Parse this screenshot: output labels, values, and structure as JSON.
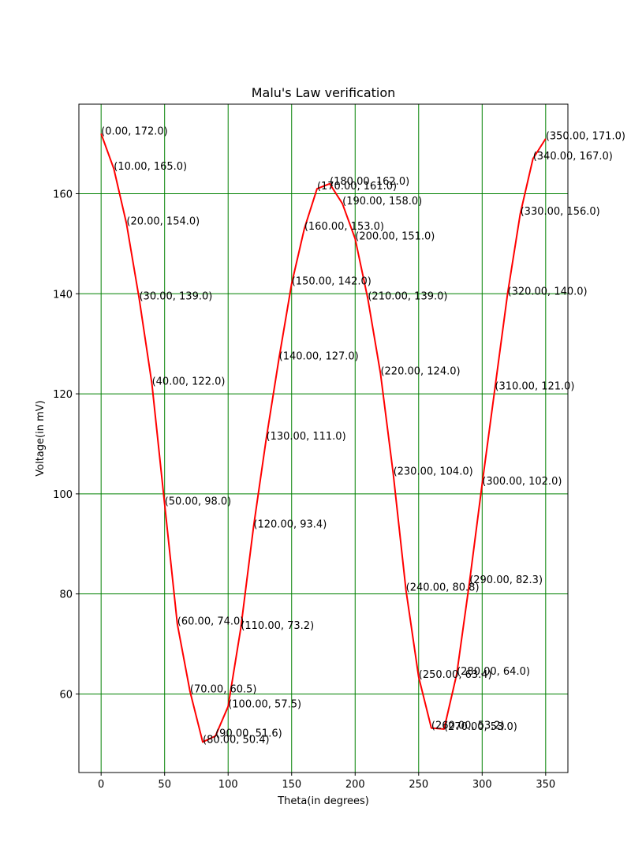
{
  "chart_data": {
    "type": "line",
    "title": "Malu's Law verification",
    "xlabel": "Theta(in degrees)",
    "ylabel": "Voltage(in mV)",
    "xlim": [
      -17.5,
      367.5
    ],
    "ylim": [
      44.3,
      177.9
    ],
    "xticks": [
      0,
      50,
      100,
      150,
      200,
      250,
      300,
      350
    ],
    "yticks": [
      60,
      80,
      100,
      120,
      140,
      160
    ],
    "grid": true,
    "grid_color": "#008000",
    "line_color": "#ff0000",
    "x": [
      0,
      10,
      20,
      30,
      40,
      50,
      60,
      70,
      80,
      90,
      100,
      110,
      120,
      130,
      140,
      150,
      160,
      170,
      180,
      190,
      200,
      210,
      220,
      230,
      240,
      250,
      260,
      270,
      280,
      290,
      300,
      310,
      320,
      330,
      340,
      350
    ],
    "y": [
      172.0,
      165.0,
      154.0,
      139.0,
      122.0,
      98.0,
      74.0,
      60.5,
      50.4,
      51.6,
      57.5,
      73.2,
      93.4,
      111.0,
      127.0,
      142.0,
      153.0,
      161.0,
      162.0,
      158.0,
      151.0,
      139.0,
      124.0,
      104.0,
      80.8,
      63.4,
      53.2,
      53.0,
      64.0,
      82.3,
      102.0,
      121.0,
      140.0,
      156.0,
      167.0,
      171.0
    ],
    "point_labels": [
      "(0.00, 172.0)",
      "(10.00, 165.0)",
      "(20.00, 154.0)",
      "(30.00, 139.0)",
      "(40.00, 122.0)",
      "(50.00, 98.0)",
      "(60.00, 74.0)",
      "(70.00, 60.5)",
      "(80.00, 50.4)",
      "(90.00, 51.6)",
      "(100.00, 57.5)",
      "(110.00, 73.2)",
      "(120.00, 93.4)",
      "(130.00, 111.0)",
      "(140.00, 127.0)",
      "(150.00, 142.0)",
      "(160.00, 153.0)",
      "(170.00, 161.0)",
      "(180.00, 162.0)",
      "(190.00, 158.0)",
      "(200.00, 151.0)",
      "(210.00, 139.0)",
      "(220.00, 124.0)",
      "(230.00, 104.0)",
      "(240.00, 80.8)",
      "(250.00, 63.4)",
      "(260.00, 53.2)",
      "(270.00, 53.0)",
      "(280.00, 64.0)",
      "(290.00, 82.3)",
      "(300.00, 102.0)",
      "(310.00, 121.0)",
      "(320.00, 140.0)",
      "(330.00, 156.0)",
      "(340.00, 167.0)",
      "(350.00, 171.0)"
    ]
  }
}
